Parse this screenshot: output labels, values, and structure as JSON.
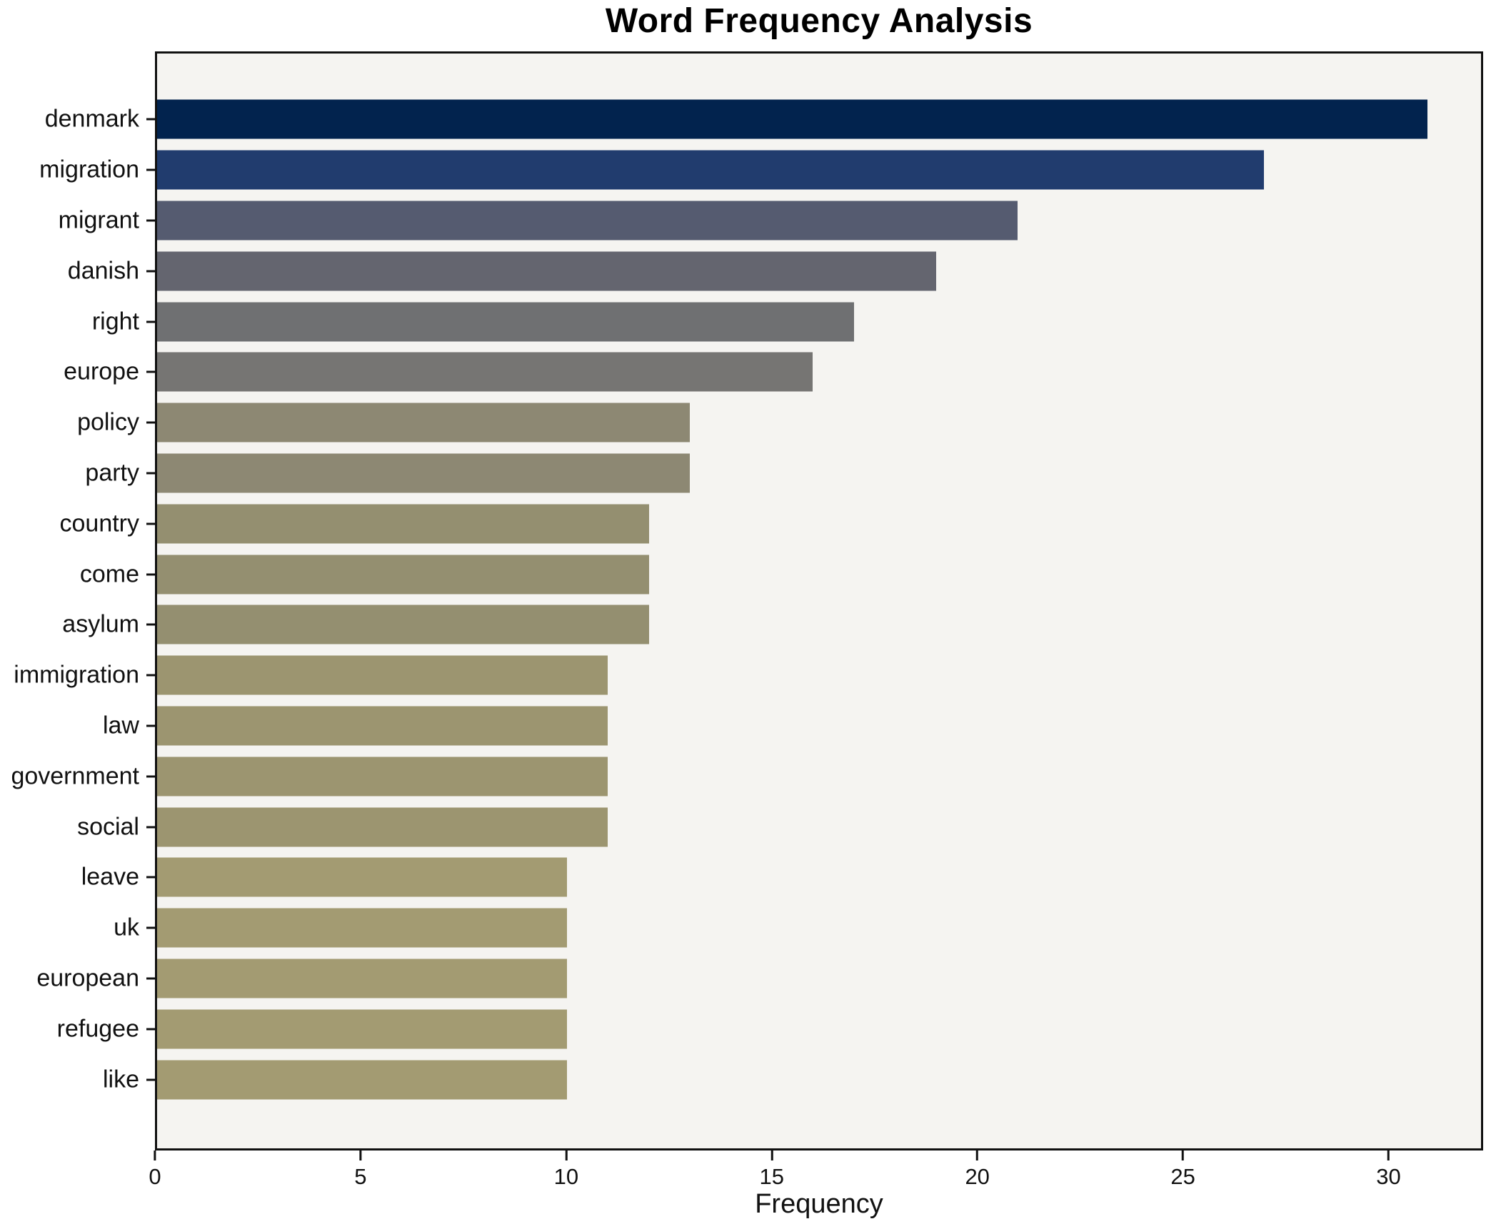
{
  "figure": {
    "title": "Word Frequency Analysis",
    "background_color": "#ffffff",
    "plot_background_color": "#f5f4f1",
    "axis_color": "#111111"
  },
  "chart_data": {
    "type": "bar",
    "orientation": "horizontal",
    "title": "Word Frequency Analysis",
    "xlabel": "Frequency",
    "ylabel": "",
    "xlim": [
      0,
      32.3
    ],
    "xticks": [
      0,
      5,
      10,
      15,
      20,
      25,
      30
    ],
    "grid": false,
    "legend": false,
    "categories": [
      "denmark",
      "migration",
      "migrant",
      "danish",
      "right",
      "europe",
      "policy",
      "party",
      "country",
      "come",
      "asylum",
      "immigration",
      "law",
      "government",
      "social",
      "leave",
      "uk",
      "european",
      "refugee",
      "like"
    ],
    "values": [
      31,
      27,
      21,
      19,
      17,
      16,
      13,
      13,
      12,
      12,
      12,
      11,
      11,
      11,
      11,
      10,
      10,
      10,
      10,
      10
    ],
    "bar_colors": [
      "#02234e",
      "#213c6e",
      "#555b70",
      "#64656f",
      "#6f7072",
      "#767573",
      "#8d8873",
      "#8d8873",
      "#948f70",
      "#948f70",
      "#948f70",
      "#9c9570",
      "#9c9570",
      "#9c9570",
      "#9c9570",
      "#a39b72",
      "#a39b72",
      "#a39b72",
      "#a39b72",
      "#a39b72"
    ]
  }
}
